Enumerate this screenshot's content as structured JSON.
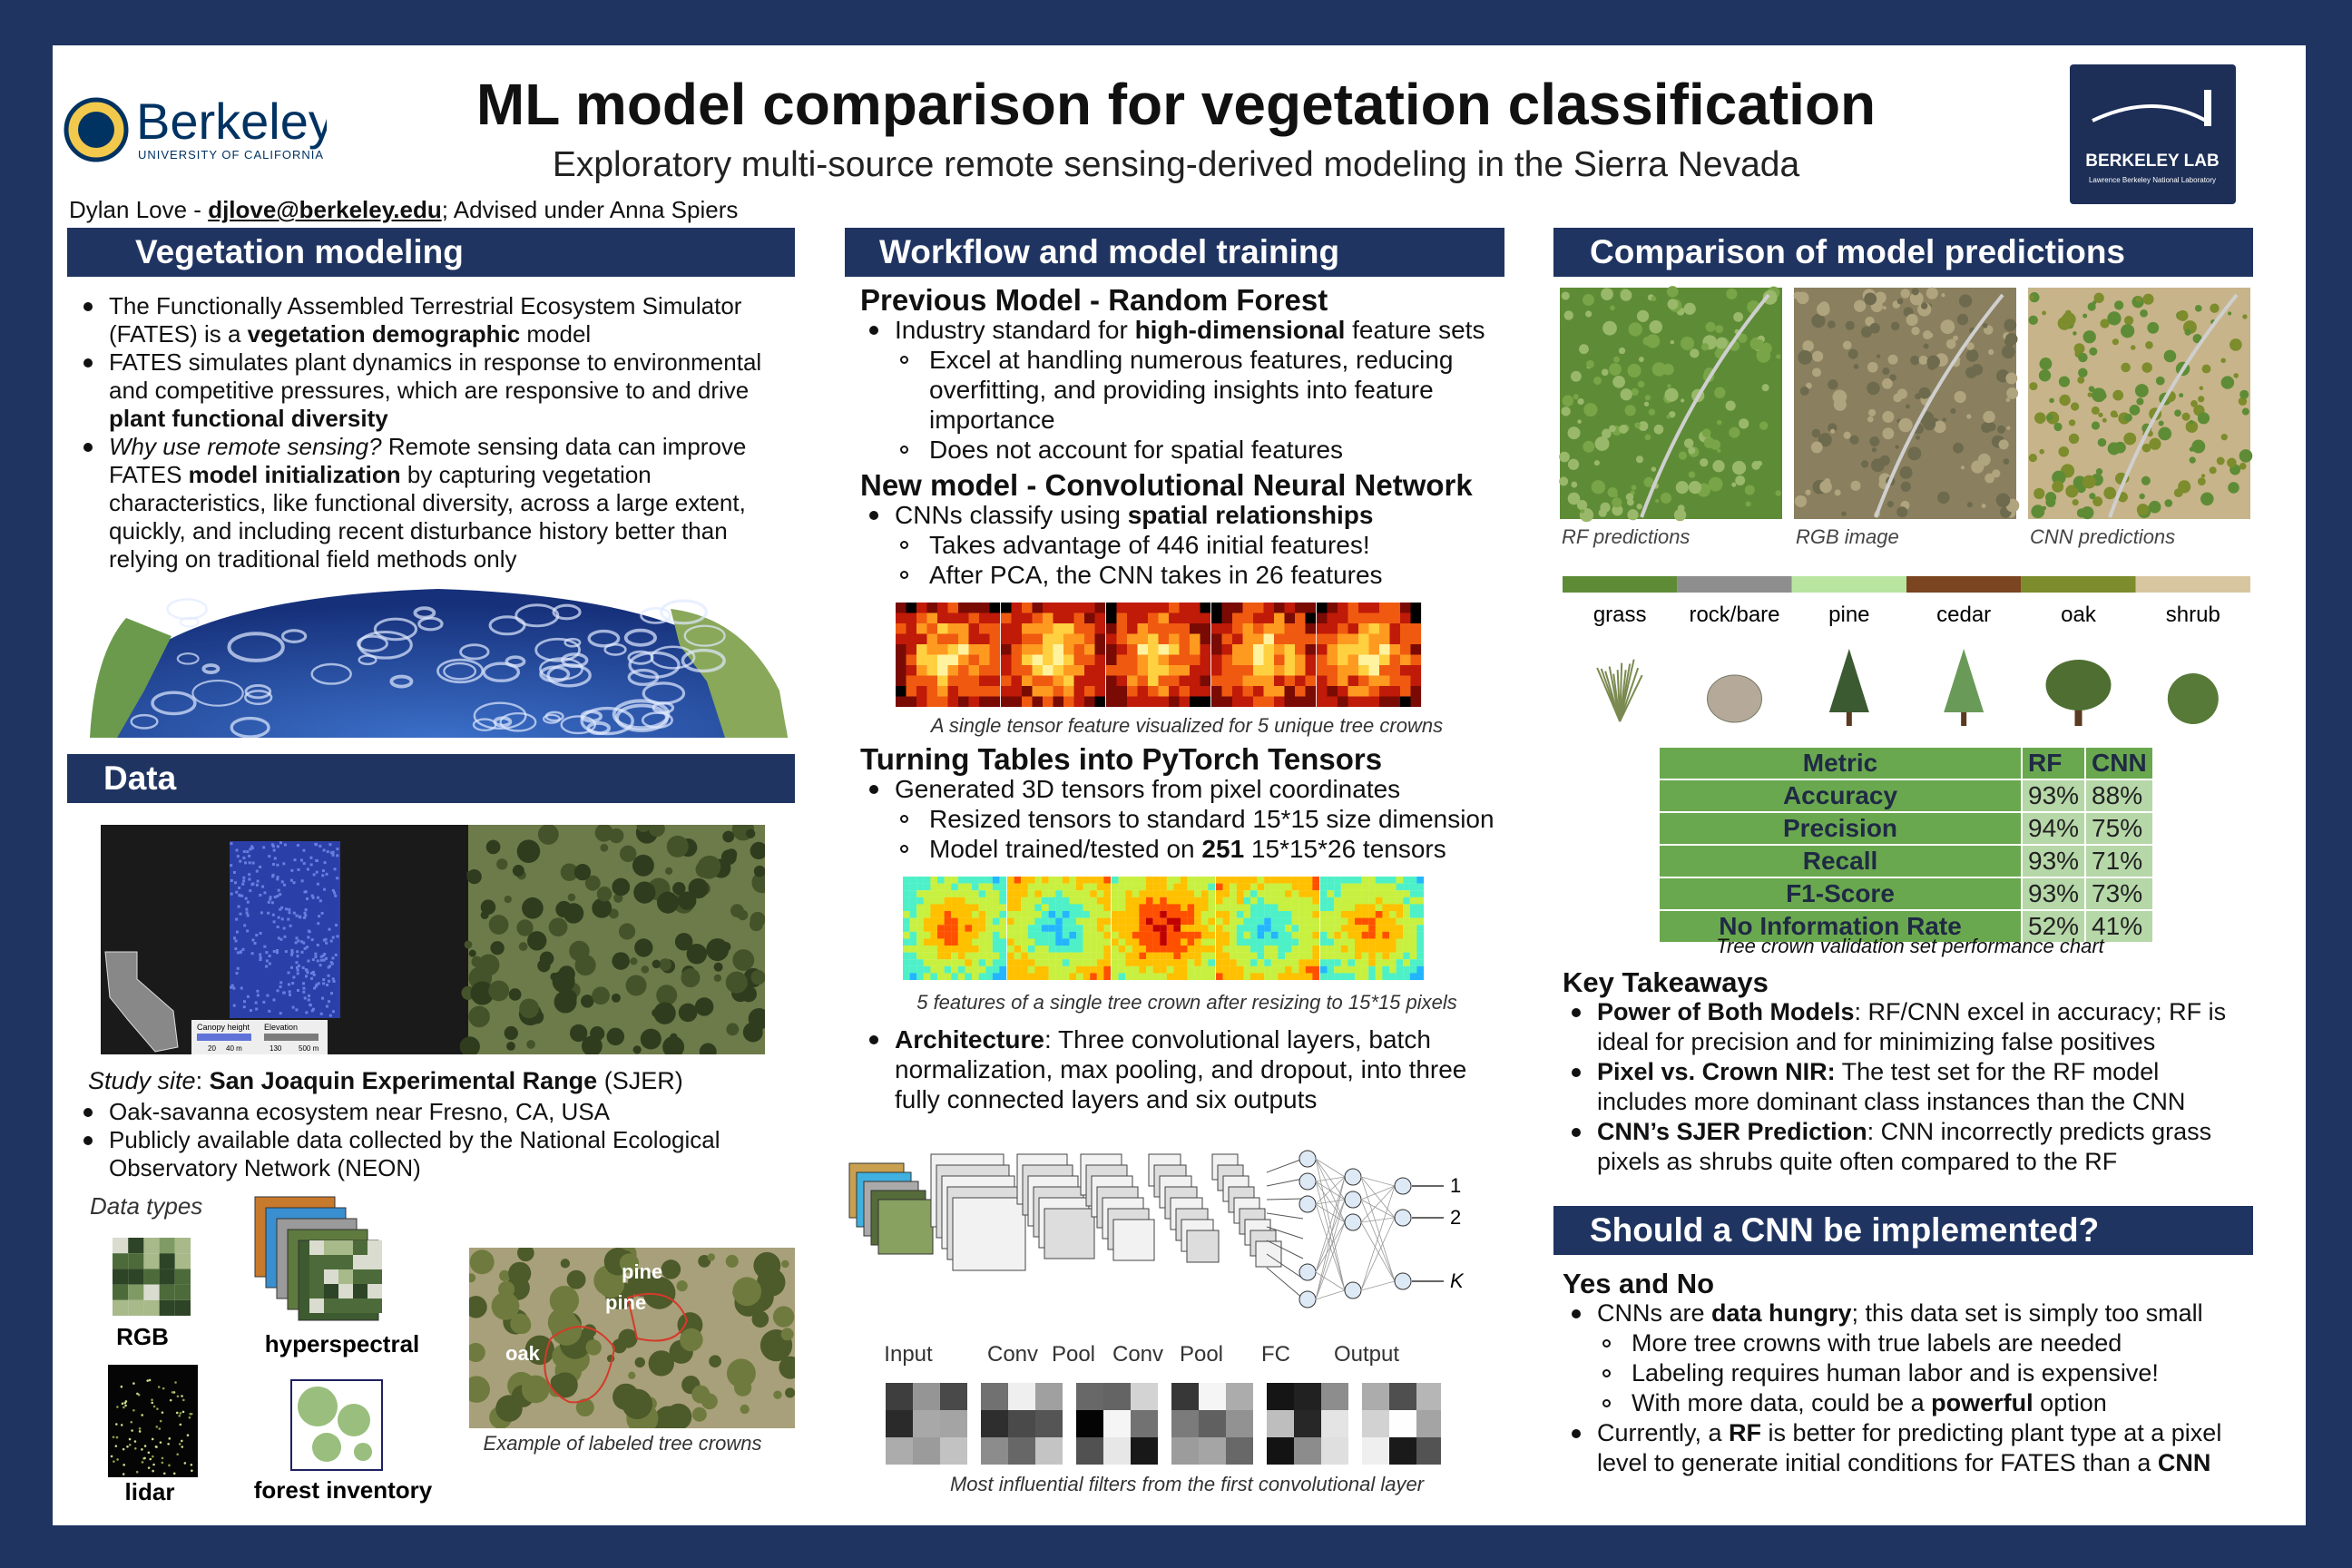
{
  "header": {
    "title": "ML model comparison for vegetation classification",
    "subtitle": "Exploratory multi-source remote sensing-derived modeling in the Sierra Nevada",
    "author": [
      {
        "text": "Dylan Love - "
      },
      {
        "text": "djlove@berkeley.edu",
        "bold": true,
        "underline": true
      },
      {
        "text": "; Advised under Anna Spiers"
      }
    ]
  },
  "logos": {
    "left": "Berkeley",
    "left_sub": "UNIVERSITY OF CALIFORNIA",
    "right": "BERKELEY LAB",
    "right_sub": "Lawrence Berkeley National Laboratory"
  },
  "vegetation": {
    "heading": "Vegetation modeling",
    "items": [
      {
        "level": 1,
        "runs": [
          {
            "text": "The Functionally Assembled Terrestrial Ecosystem Simulator (FATES) is a "
          },
          {
            "text": "vegetation demographic",
            "bold": true
          },
          {
            "text": " model"
          }
        ]
      },
      {
        "level": 1,
        "runs": [
          {
            "text": "FATES simulates plant dynamics in response to environmental and competitive pressures, which are responsive to and drive "
          },
          {
            "text": "plant functional diversity",
            "bold": true
          }
        ]
      },
      {
        "level": 1,
        "runs": [
          {
            "text": "Why use remote sensing?",
            "italic": true
          },
          {
            "text": " Remote sensing data can improve FATES "
          },
          {
            "text": "model initialization",
            "bold": true
          },
          {
            "text": " by capturing vegetation characteristics, like functional diversity, across a large extent, quickly, and including recent disturbance history better than relying on traditional field methods only"
          }
        ]
      }
    ]
  },
  "data": {
    "heading": "Data",
    "map_labels": [
      "Canopy height",
      "Elevation",
      "20",
      "40 m",
      "130",
      "500 m"
    ],
    "study_site": [
      {
        "text": "Study site",
        "italic": true
      },
      {
        "text": ": "
      },
      {
        "text": "San Joaquin Experimental Range",
        "bold": true
      },
      {
        "text": " (SJER)"
      }
    ],
    "items": [
      {
        "level": 1,
        "runs": [
          {
            "text": "Oak-savanna ecosystem near Fresno, CA, USA"
          }
        ]
      },
      {
        "level": 1,
        "runs": [
          {
            "text": "Publicly available data collected by the National Ecological Observatory Network (NEON)"
          }
        ]
      }
    ],
    "types_label": "Data types",
    "types": [
      "RGB",
      "hyperspectral",
      "lidar",
      "forest inventory"
    ],
    "crown_labels": [
      "pine",
      "pine",
      "oak"
    ],
    "crown_caption": "Example of labeled tree crowns"
  },
  "workflow": {
    "heading": "Workflow and model training",
    "rf": {
      "title": "Previous Model - Random Forest",
      "items": [
        {
          "level": 1,
          "runs": [
            {
              "text": "Industry standard for "
            },
            {
              "text": "high-dimensional",
              "bold": true
            },
            {
              "text": " feature sets"
            }
          ]
        },
        {
          "level": 2,
          "runs": [
            {
              "text": "Excel at handling numerous features, reducing overfitting, and providing insights into feature importance"
            }
          ]
        },
        {
          "level": 2,
          "runs": [
            {
              "text": "Does not account for spatial features"
            }
          ]
        }
      ]
    },
    "cnn": {
      "title": "New model - Convolutional Neural Network",
      "items": [
        {
          "level": 1,
          "runs": [
            {
              "text": "CNNs classify using "
            },
            {
              "text": "spatial relationships",
              "bold": true
            }
          ]
        },
        {
          "level": 2,
          "runs": [
            {
              "text": "Takes advantage of 446 initial features!"
            }
          ]
        },
        {
          "level": 2,
          "runs": [
            {
              "text": "After PCA, the CNN takes in 26 features"
            }
          ]
        }
      ]
    },
    "feature_caption": "A single tensor feature visualized for 5 unique tree crowns",
    "tensors": {
      "title": "Turning Tables into PyTorch Tensors",
      "items": [
        {
          "level": 1,
          "runs": [
            {
              "text": "Generated 3D tensors from pixel coordinates"
            }
          ]
        },
        {
          "level": 2,
          "runs": [
            {
              "text": "Resized tensors to standard 15*15 size dimension"
            }
          ]
        },
        {
          "level": 2,
          "runs": [
            {
              "text": "Model trained/tested on "
            },
            {
              "text": "251",
              "bold": true
            },
            {
              "text": " 15*15*26 tensors"
            }
          ]
        }
      ]
    },
    "resize_caption": "5 features of a single tree crown after resizing to 15*15 pixels",
    "architecture": [
      {
        "level": 1,
        "runs": [
          {
            "text": "Architecture",
            "bold": true
          },
          {
            "text": ": Three convolutional layers, batch normalization, max pooling, and dropout, into three fully connected layers and six outputs"
          }
        ]
      }
    ],
    "diagram_labels": [
      "Input",
      "Conv",
      "Pool",
      "Conv",
      "Pool",
      "FC",
      "Output"
    ],
    "diagram_outputs": [
      "1",
      "2",
      "K"
    ],
    "filters_caption": "Most influential filters from the first convolutional layer"
  },
  "comparison": {
    "heading": "Comparison of model predictions",
    "images": [
      "RF predictions",
      "RGB image",
      "CNN predictions"
    ],
    "classes": [
      {
        "name": "grass",
        "color": "#5e8c36"
      },
      {
        "name": "rock/bare",
        "color": "#8e8e8e"
      },
      {
        "name": "pine",
        "color": "#b8e6a0"
      },
      {
        "name": "cedar",
        "color": "#7a4520"
      },
      {
        "name": "oak",
        "color": "#7d8c2c"
      },
      {
        "name": "shrub",
        "color": "#d8c6a0"
      }
    ],
    "table": {
      "header": [
        "Metric",
        "RF",
        "CNN"
      ],
      "rows": [
        [
          "Accuracy",
          "93%",
          "88%"
        ],
        [
          "Precision",
          "94%",
          "75%"
        ],
        [
          "Recall",
          "93%",
          "71%"
        ],
        [
          "F1-Score",
          "93%",
          "73%"
        ],
        [
          "No Information Rate",
          "52%",
          "41%"
        ]
      ]
    },
    "table_caption": "Tree crown validation set performance chart",
    "takeaways_title": "Key Takeaways",
    "takeaways": [
      {
        "level": 1,
        "runs": [
          {
            "text": "Power of Both Models",
            "bold": true
          },
          {
            "text": ": RF/CNN excel in accuracy; RF is ideal for precision and for minimizing false positives"
          }
        ]
      },
      {
        "level": 1,
        "runs": [
          {
            "text": "Pixel vs. Crown NIR:",
            "bold": true
          },
          {
            "text": " The test set for the RF model includes more dominant class instances than the CNN"
          }
        ]
      },
      {
        "level": 1,
        "runs": [
          {
            "text": "CNN’s SJER Prediction",
            "bold": true
          },
          {
            "text": ": CNN incorrectly predicts grass pixels as shrubs quite often compared to the RF"
          }
        ]
      }
    ]
  },
  "implement": {
    "heading": "Should a CNN be implemented?",
    "answer": "Yes and No",
    "items": [
      {
        "level": 1,
        "runs": [
          {
            "text": "CNNs are "
          },
          {
            "text": "data hungry",
            "bold": true
          },
          {
            "text": "; this data set is simply too small"
          }
        ]
      },
      {
        "level": 2,
        "runs": [
          {
            "text": "More tree crowns with true labels are needed"
          }
        ]
      },
      {
        "level": 2,
        "runs": [
          {
            "text": "Labeling requires human labor and is expensive!"
          }
        ]
      },
      {
        "level": 2,
        "runs": [
          {
            "text": "With more data, could be a "
          },
          {
            "text": "powerful",
            "bold": true
          },
          {
            "text": " option"
          }
        ]
      },
      {
        "level": 1,
        "runs": [
          {
            "text": "Currently, a "
          },
          {
            "text": "RF",
            "bold": true
          },
          {
            "text": " is better for predicting plant type at a pixel level to generate initial conditions for FATES than a "
          },
          {
            "text": "CNN",
            "bold": true
          }
        ]
      }
    ]
  }
}
